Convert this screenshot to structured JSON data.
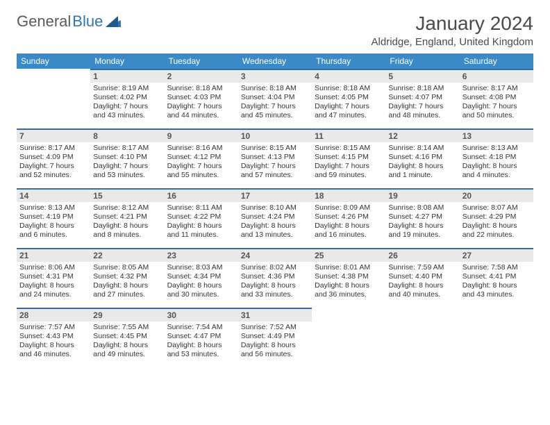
{
  "brand": {
    "name1": "General",
    "name2": "Blue"
  },
  "title": "January 2024",
  "location": "Aldridge, England, United Kingdom",
  "colors": {
    "header_bg": "#3a8ac8",
    "header_text": "#ffffff",
    "day_border": "#3a6a9a",
    "daynum_bg": "#e9e9e9",
    "text": "#333333",
    "brand_gray": "#5a5a5a",
    "brand_blue": "#2f77b9"
  },
  "weekdays": [
    "Sunday",
    "Monday",
    "Tuesday",
    "Wednesday",
    "Thursday",
    "Friday",
    "Saturday"
  ],
  "start_offset": 1,
  "days": [
    {
      "n": 1,
      "sr": "8:19 AM",
      "ss": "4:02 PM",
      "dl": "7 hours and 43 minutes."
    },
    {
      "n": 2,
      "sr": "8:18 AM",
      "ss": "4:03 PM",
      "dl": "7 hours and 44 minutes."
    },
    {
      "n": 3,
      "sr": "8:18 AM",
      "ss": "4:04 PM",
      "dl": "7 hours and 45 minutes."
    },
    {
      "n": 4,
      "sr": "8:18 AM",
      "ss": "4:05 PM",
      "dl": "7 hours and 47 minutes."
    },
    {
      "n": 5,
      "sr": "8:18 AM",
      "ss": "4:07 PM",
      "dl": "7 hours and 48 minutes."
    },
    {
      "n": 6,
      "sr": "8:17 AM",
      "ss": "4:08 PM",
      "dl": "7 hours and 50 minutes."
    },
    {
      "n": 7,
      "sr": "8:17 AM",
      "ss": "4:09 PM",
      "dl": "7 hours and 52 minutes."
    },
    {
      "n": 8,
      "sr": "8:17 AM",
      "ss": "4:10 PM",
      "dl": "7 hours and 53 minutes."
    },
    {
      "n": 9,
      "sr": "8:16 AM",
      "ss": "4:12 PM",
      "dl": "7 hours and 55 minutes."
    },
    {
      "n": 10,
      "sr": "8:15 AM",
      "ss": "4:13 PM",
      "dl": "7 hours and 57 minutes."
    },
    {
      "n": 11,
      "sr": "8:15 AM",
      "ss": "4:15 PM",
      "dl": "7 hours and 59 minutes."
    },
    {
      "n": 12,
      "sr": "8:14 AM",
      "ss": "4:16 PM",
      "dl": "8 hours and 1 minute."
    },
    {
      "n": 13,
      "sr": "8:13 AM",
      "ss": "4:18 PM",
      "dl": "8 hours and 4 minutes."
    },
    {
      "n": 14,
      "sr": "8:13 AM",
      "ss": "4:19 PM",
      "dl": "8 hours and 6 minutes."
    },
    {
      "n": 15,
      "sr": "8:12 AM",
      "ss": "4:21 PM",
      "dl": "8 hours and 8 minutes."
    },
    {
      "n": 16,
      "sr": "8:11 AM",
      "ss": "4:22 PM",
      "dl": "8 hours and 11 minutes."
    },
    {
      "n": 17,
      "sr": "8:10 AM",
      "ss": "4:24 PM",
      "dl": "8 hours and 13 minutes."
    },
    {
      "n": 18,
      "sr": "8:09 AM",
      "ss": "4:26 PM",
      "dl": "8 hours and 16 minutes."
    },
    {
      "n": 19,
      "sr": "8:08 AM",
      "ss": "4:27 PM",
      "dl": "8 hours and 19 minutes."
    },
    {
      "n": 20,
      "sr": "8:07 AM",
      "ss": "4:29 PM",
      "dl": "8 hours and 22 minutes."
    },
    {
      "n": 21,
      "sr": "8:06 AM",
      "ss": "4:31 PM",
      "dl": "8 hours and 24 minutes."
    },
    {
      "n": 22,
      "sr": "8:05 AM",
      "ss": "4:32 PM",
      "dl": "8 hours and 27 minutes."
    },
    {
      "n": 23,
      "sr": "8:03 AM",
      "ss": "4:34 PM",
      "dl": "8 hours and 30 minutes."
    },
    {
      "n": 24,
      "sr": "8:02 AM",
      "ss": "4:36 PM",
      "dl": "8 hours and 33 minutes."
    },
    {
      "n": 25,
      "sr": "8:01 AM",
      "ss": "4:38 PM",
      "dl": "8 hours and 36 minutes."
    },
    {
      "n": 26,
      "sr": "7:59 AM",
      "ss": "4:40 PM",
      "dl": "8 hours and 40 minutes."
    },
    {
      "n": 27,
      "sr": "7:58 AM",
      "ss": "4:41 PM",
      "dl": "8 hours and 43 minutes."
    },
    {
      "n": 28,
      "sr": "7:57 AM",
      "ss": "4:43 PM",
      "dl": "8 hours and 46 minutes."
    },
    {
      "n": 29,
      "sr": "7:55 AM",
      "ss": "4:45 PM",
      "dl": "8 hours and 49 minutes."
    },
    {
      "n": 30,
      "sr": "7:54 AM",
      "ss": "4:47 PM",
      "dl": "8 hours and 53 minutes."
    },
    {
      "n": 31,
      "sr": "7:52 AM",
      "ss": "4:49 PM",
      "dl": "8 hours and 56 minutes."
    }
  ],
  "labels": {
    "sunrise": "Sunrise:",
    "sunset": "Sunset:",
    "daylight": "Daylight:"
  }
}
